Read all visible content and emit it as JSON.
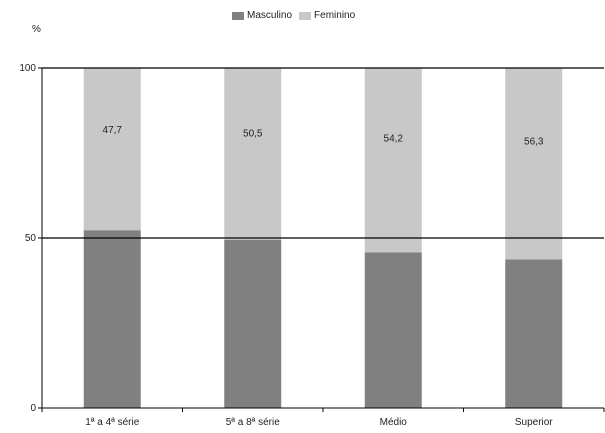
{
  "chart_data": {
    "type": "bar",
    "stacked": true,
    "ylabel": "%",
    "ylim": [
      0,
      100
    ],
    "yticks": [
      0,
      50,
      100
    ],
    "grid": true,
    "legend_position": "top-center",
    "categories": [
      "1ª a 4ª série",
      "5ª a 8ª série",
      "Médio",
      "Superior"
    ],
    "series": [
      {
        "name": "Masculino",
        "color": "#808080",
        "values": [
          52.3,
          49.5,
          45.8,
          43.7
        ]
      },
      {
        "name": "Feminino",
        "color": "#c8c8c8",
        "values": [
          47.7,
          50.5,
          54.2,
          56.3
        ]
      }
    ],
    "data_labels": [
      "47,7",
      "50,5",
      "54,2",
      "56,3"
    ]
  }
}
